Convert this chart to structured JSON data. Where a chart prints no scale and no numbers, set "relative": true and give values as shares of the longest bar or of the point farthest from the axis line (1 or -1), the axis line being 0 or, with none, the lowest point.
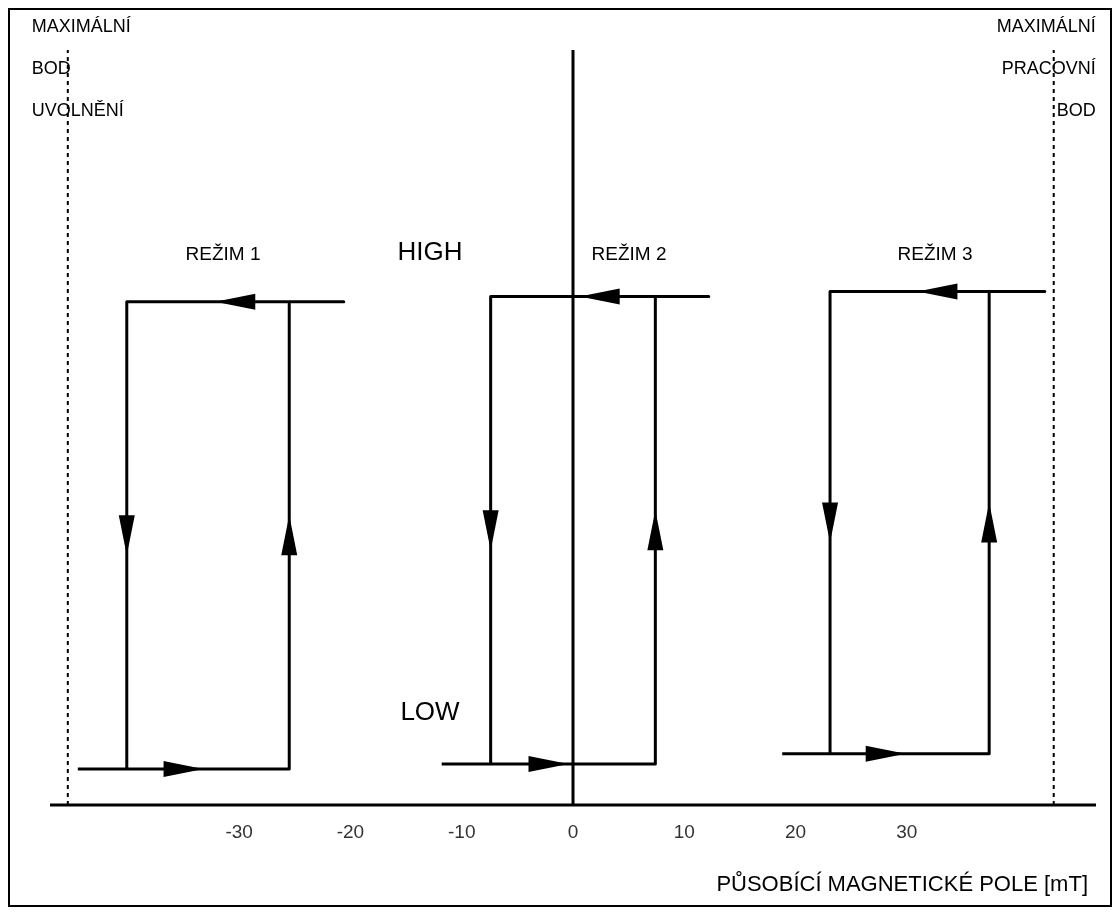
{
  "chart_data": {
    "type": "line",
    "relative": true,
    "xlabel": "PŮSOBÍCÍ MAGNETICKÉ POLE [mT]",
    "xlim": [
      -47,
      47
    ],
    "xticks": [
      -30,
      -20,
      -10,
      0,
      10,
      20,
      30
    ],
    "marker": "none",
    "line_style": "solid",
    "series": [
      {
        "color": "#000000",
        "x": [
          -44.5,
          -25.5,
          -25.5,
          -20.6,
          -40.1,
          -40.1
        ],
        "values": [
          0.07,
          0.07,
          0.98,
          0.98,
          0.98,
          0.07
        ]
      },
      {
        "color": "#000000",
        "x": [
          -11.8,
          7.4,
          7.4,
          12.2,
          -7.4,
          -7.4
        ],
        "values": [
          0.08,
          0.08,
          0.99,
          0.99,
          0.99,
          0.08
        ]
      },
      {
        "color": "#000000",
        "x": [
          18.8,
          37.4,
          37.4,
          42.4,
          23.1,
          23.1
        ],
        "values": [
          0.1,
          0.1,
          1,
          1,
          1,
          0.1
        ]
      }
    ],
    "ref_lines": [
      {
        "axis": "x",
        "value": -45.4,
        "label": "MAXIMÁLNÍ BOD UVOLNĚNÍ",
        "line_style": "dotted",
        "color": "#000000"
      },
      {
        "axis": "x",
        "value": 43.2,
        "label": "MAXIMÁLNÍ PRACOVNÍ BOD",
        "line_style": "dotted",
        "color": "#000000"
      },
      {
        "axis": "x",
        "value": 0,
        "line_style": "solid",
        "color": "#000000"
      }
    ],
    "annotations": [
      "REŽIM 1",
      "REŽIM 2",
      "REŽIM 3",
      "HIGH",
      "LOW"
    ]
  }
}
